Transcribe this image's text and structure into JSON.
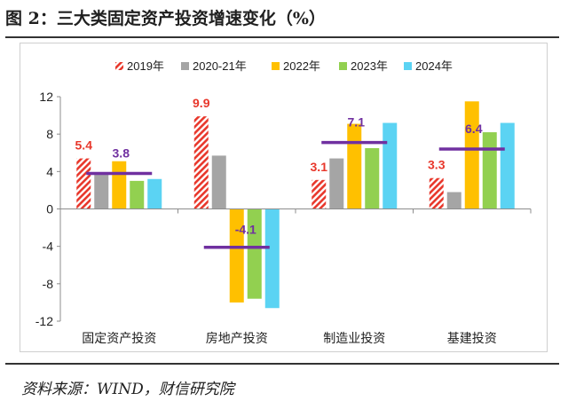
{
  "title": "图 2：三大类固定资产投资增速变化（%）",
  "source": "资料来源：WIND，财信研究院",
  "chart_data": {
    "type": "bar",
    "categories": [
      "固定资产投资",
      "房地产投资",
      "制造业投资",
      "基建投资"
    ],
    "series": [
      {
        "name": "2019年",
        "values": [
          5.4,
          9.9,
          3.1,
          3.3
        ],
        "color": "#e8372b",
        "pattern": "hatch"
      },
      {
        "name": "2020-21年",
        "values": [
          3.9,
          5.7,
          5.4,
          1.8
        ],
        "color": "#a5a5a5"
      },
      {
        "name": "2022年",
        "values": [
          5.1,
          -10.0,
          9.1,
          11.5
        ],
        "color": "#ffc000"
      },
      {
        "name": "2023年",
        "values": [
          3.0,
          -9.6,
          6.5,
          8.2
        ],
        "color": "#92d050"
      },
      {
        "name": "2024年",
        "values": [
          3.2,
          -10.6,
          9.2,
          9.2
        ],
        "color": "#5bd3f3"
      }
    ],
    "average_markers": {
      "values": [
        3.8,
        -4.1,
        7.1,
        6.4
      ],
      "color": "#7030a0"
    },
    "data_labels": [
      {
        "category": 0,
        "series": 0,
        "text": "5.4",
        "color": "#e8372b"
      },
      {
        "category": 0,
        "series": "average",
        "text": "3.8",
        "color": "#7030a0"
      },
      {
        "category": 1,
        "series": 0,
        "text": "9.9",
        "color": "#e8372b"
      },
      {
        "category": 1,
        "series": "average",
        "text": "-4.1",
        "color": "#7030a0"
      },
      {
        "category": 2,
        "series": 0,
        "text": "3.1",
        "color": "#e8372b"
      },
      {
        "category": 2,
        "series": "average",
        "text": "7.1",
        "color": "#7030a0"
      },
      {
        "category": 3,
        "series": 0,
        "text": "3.3",
        "color": "#e8372b"
      },
      {
        "category": 3,
        "series": "average",
        "text": "6.4",
        "color": "#7030a0"
      }
    ],
    "ylim": [
      -12,
      12
    ],
    "yticks": [
      "12",
      "8",
      "4",
      "0",
      "-4",
      "-8",
      "-12"
    ],
    "grid": false,
    "legend_position": "top"
  }
}
